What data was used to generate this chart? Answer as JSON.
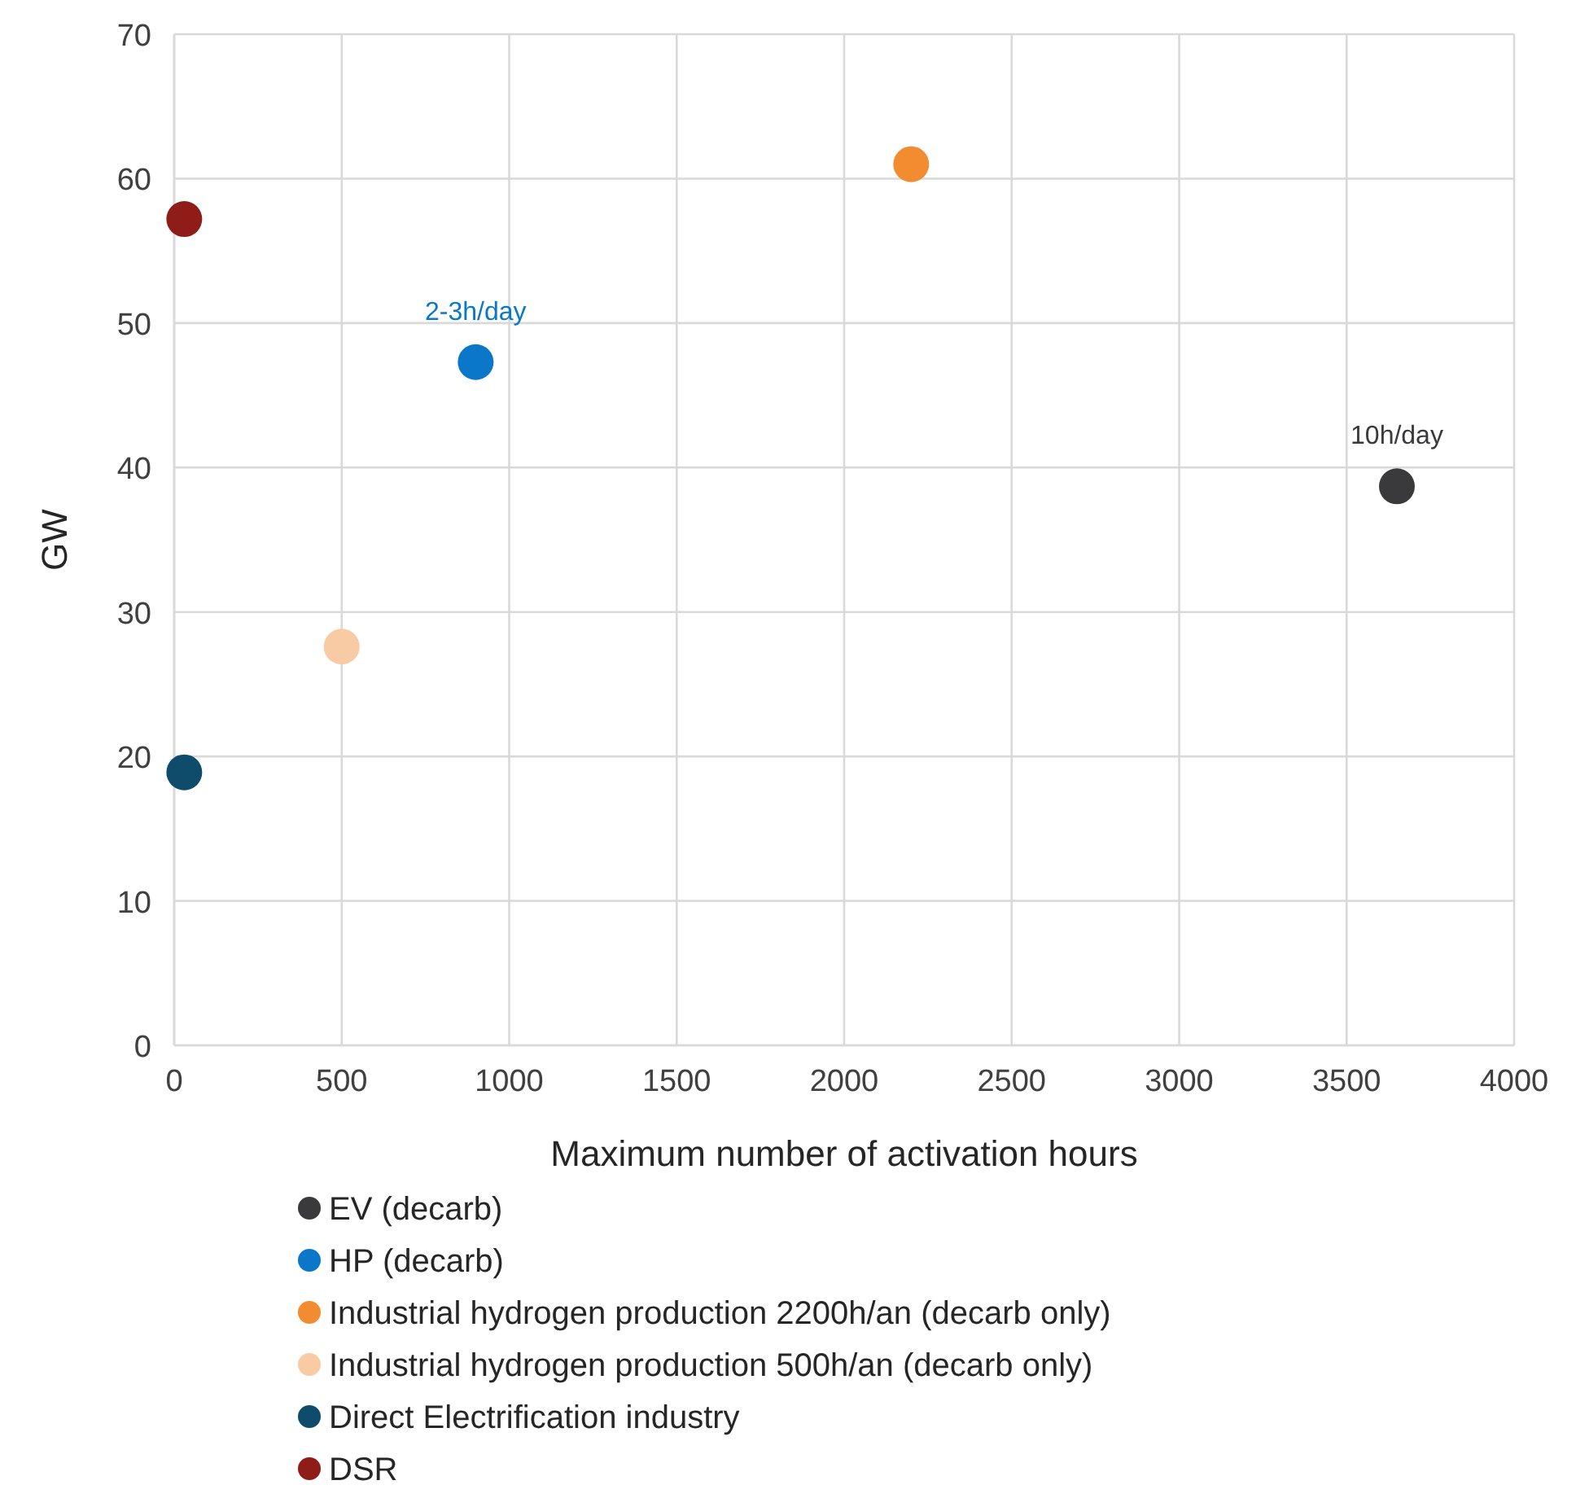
{
  "chart_data": {
    "type": "scatter",
    "xlabel": "Maximum number of activation hours",
    "ylabel": "GW",
    "xlim": [
      0,
      4000
    ],
    "xticks": [
      0,
      500,
      1000,
      1500,
      2000,
      2500,
      3000,
      3500,
      4000
    ],
    "ylim": [
      0,
      70
    ],
    "yticks": [
      0,
      10,
      20,
      30,
      40,
      50,
      60,
      70
    ],
    "grid": true,
    "legend": "bottom",
    "marker": "circle",
    "series": [
      {
        "name": "EV (decarb)",
        "color": "#3a3a3c",
        "x": [
          3650
        ],
        "values": [
          38.7
        ]
      },
      {
        "name": "HP (decarb)",
        "color": "#0a77c9",
        "x": [
          900
        ],
        "values": [
          47.3
        ]
      },
      {
        "name": "Industrial hydrogen production 2200h/an (decarb only)",
        "color": "#f28c30",
        "x": [
          2200
        ],
        "values": [
          61
        ]
      },
      {
        "name": "Industrial hydrogen production 500h/an (decarb only)",
        "color": "#f8cba5",
        "x": [
          500
        ],
        "values": [
          27.6
        ]
      },
      {
        "name": "Direct Electrification industry",
        "color": "#0f4c6b",
        "x": [
          30
        ],
        "values": [
          18.9
        ]
      },
      {
        "name": "DSR",
        "color": "#8f1c17",
        "x": [
          30
        ],
        "values": [
          57.2
        ]
      }
    ],
    "annotations": [
      {
        "text": "2-3h/day",
        "x": 900,
        "y": 47.3
      },
      {
        "text": "10h/day",
        "x": 3650,
        "y": 38.7
      }
    ]
  }
}
